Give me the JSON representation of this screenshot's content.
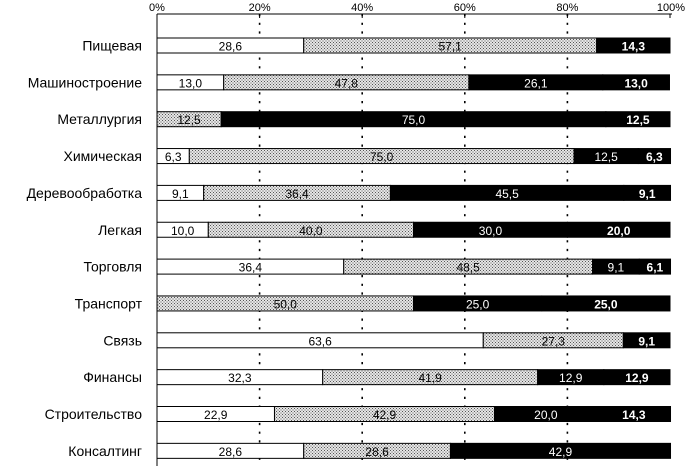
{
  "chart_data": {
    "type": "bar",
    "orientation": "horizontal",
    "stacked": true,
    "percent": true,
    "xlim": [
      0,
      100
    ],
    "xticks": [
      "0%",
      "20%",
      "40%",
      "60%",
      "80%",
      "100%"
    ],
    "grid": "dotted-vertical",
    "categories": [
      "Пищевая",
      "Машиностроение",
      "Металлургия",
      "Химическая",
      "Деревообработка",
      "Легкая",
      "Торговля",
      "Транспорт",
      "Связь",
      "Финансы",
      "Строительство",
      "Консалтинг"
    ],
    "series": [
      {
        "color": "#ffffff",
        "label_color": "#000000",
        "bold": false,
        "values": [
          28.6,
          13.0,
          0,
          6.3,
          9.1,
          10.0,
          36.4,
          0,
          63.6,
          32.3,
          22.9,
          28.6
        ],
        "labels": [
          "28,6",
          "13,0",
          "",
          "6,3",
          "9,1",
          "10,0",
          "36,4",
          "",
          "63,6",
          "32,3",
          "22,9",
          "28,6"
        ]
      },
      {
        "color": "#bdbdbd",
        "label_color": "#000000",
        "bold": false,
        "values": [
          57.1,
          47.8,
          12.5,
          75.0,
          36.4,
          40.0,
          48.5,
          50.0,
          27.3,
          41.9,
          42.9,
          28.6
        ],
        "labels": [
          "57,1",
          "47,8",
          "12,5",
          "75,0",
          "36,4",
          "40,0",
          "48,5",
          "50,0",
          "27,3",
          "41,9",
          "42,9",
          "28,6"
        ]
      },
      {
        "color": "#000000",
        "label_color": "#ffffff",
        "bold": false,
        "values": [
          0,
          26.1,
          75.0,
          12.5,
          45.5,
          30.0,
          9.1,
          25.0,
          0,
          12.9,
          20.0,
          42.9
        ],
        "labels": [
          "",
          "26,1",
          "75,0",
          "12,5",
          "45,5",
          "30,0",
          "9,1",
          "25,0",
          "",
          "12,9",
          "20,0",
          "42,9"
        ]
      },
      {
        "color": "#000000",
        "label_color": "#ffffff",
        "bold": true,
        "values": [
          14.3,
          13.0,
          12.5,
          6.3,
          9.1,
          20.0,
          6.1,
          25.0,
          9.1,
          12.9,
          14.3,
          0
        ],
        "labels": [
          "14,3",
          "13,0",
          "12,5",
          "6,3",
          "9,1",
          "20,0",
          "6,1",
          "25,0",
          "9,1",
          "12,9",
          "14,3",
          ""
        ]
      }
    ]
  }
}
